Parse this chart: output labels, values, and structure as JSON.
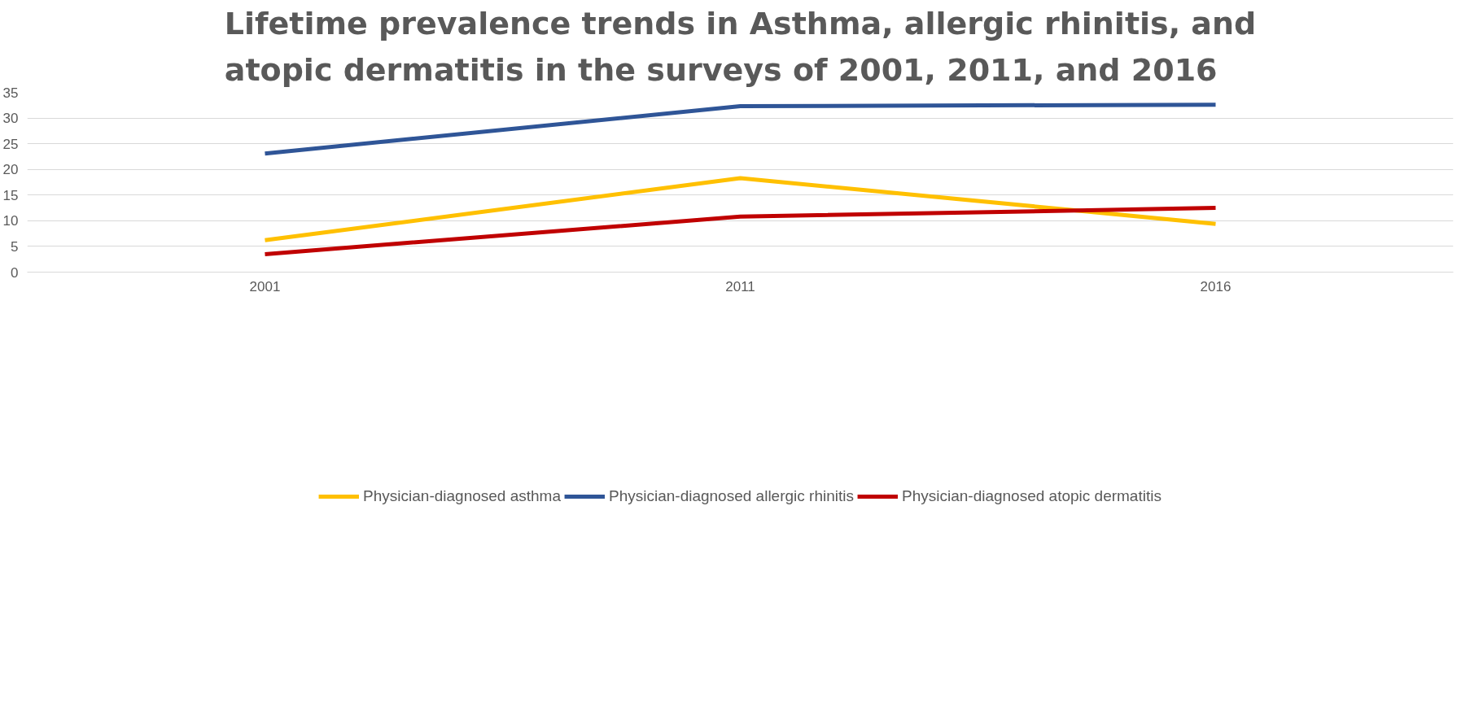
{
  "chart_data": {
    "type": "line",
    "title": "Lifetime prevalence trends in Asthma, allergic rhinitis, and\natopic dermatitis in the surveys of 2001, 2011, and 2016",
    "categories": [
      "2001",
      "2011",
      "2016"
    ],
    "series": [
      {
        "name": "Physician-diagnosed asthma",
        "color": "#ffc000",
        "values": [
          6.2,
          18.3,
          9.4
        ]
      },
      {
        "name": "Physician-diagnosed allergic rhinitis",
        "color": "#2f5597",
        "values": [
          23.1,
          32.3,
          32.6
        ]
      },
      {
        "name": "Physician-diagnosed atopic dermatitis",
        "color": "#c00000",
        "values": [
          3.5,
          10.8,
          12.5
        ]
      }
    ],
    "ylim": [
      0,
      35
    ],
    "yticks": [
      0,
      5,
      10,
      15,
      20,
      25,
      30,
      35
    ],
    "grid": "y",
    "legend": "bottom",
    "marker": "none",
    "line_style": "solid"
  }
}
